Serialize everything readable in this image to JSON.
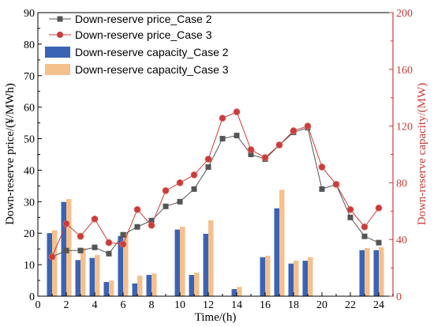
{
  "chart_data": {
    "type": "bar+line",
    "xlabel": "Time/(h)",
    "ylabel_left": "Down-reserve price/(¥/MWh)",
    "ylabel_right": "Down-reserve capacity/(MW)",
    "xlim": [
      0,
      25
    ],
    "x_ticks": [
      "0",
      "2",
      "4",
      "6",
      "8",
      "10",
      "12",
      "14",
      "16",
      "18",
      "20",
      "22",
      "24"
    ],
    "ylim_left": [
      0,
      90
    ],
    "y_ticks_left": [
      "0",
      "10",
      "20",
      "30",
      "40",
      "50",
      "60",
      "70",
      "80",
      "90"
    ],
    "ylim_right": [
      0,
      200
    ],
    "y_ticks_right": [
      "0",
      "40",
      "80",
      "120",
      "160",
      "200"
    ],
    "x": [
      1,
      2,
      3,
      4,
      5,
      6,
      7,
      8,
      9,
      10,
      11,
      12,
      13,
      14,
      15,
      16,
      17,
      18,
      19,
      20,
      21,
      22,
      23,
      24
    ],
    "bar_series": [
      {
        "name": "Down-reserve capacity_Case 2",
        "color": "#3B63B5",
        "values": [
          44.5,
          66.5,
          25.5,
          27,
          10,
          42.5,
          9,
          15,
          0,
          47,
          15,
          44,
          0,
          5,
          0,
          27.5,
          62,
          23,
          25,
          0,
          0,
          0,
          32.5,
          32.5
        ]
      },
      {
        "name": "Down-reserve capacity_Case 3",
        "color": "#F5C08C",
        "values": [
          46.5,
          68.5,
          34,
          29,
          11,
          44.5,
          14.5,
          16,
          0,
          49,
          16.5,
          53.5,
          0,
          6.5,
          0,
          28.5,
          75,
          25,
          27.5,
          0,
          0,
          0,
          34,
          34.5
        ]
      }
    ],
    "line_series": [
      {
        "name": "Down-reserve price_Case 2",
        "color": "#555555",
        "marker": "square",
        "values": [
          12.5,
          14.5,
          14.5,
          15.5,
          13.5,
          19.5,
          22,
          24,
          28.5,
          30,
          34,
          41,
          50,
          51,
          45,
          43.5,
          48,
          52,
          53.5,
          34,
          35.5,
          25,
          19,
          17
        ]
      },
      {
        "name": "Down-reserve price_Case 3",
        "color": "#C83C3C",
        "marker": "circle",
        "values": [
          12.5,
          23,
          19,
          24.5,
          17,
          16.5,
          27.5,
          22.5,
          33.5,
          36,
          38.5,
          43.5,
          56.5,
          58.5,
          46.5,
          44,
          48,
          52.5,
          54,
          41,
          35.5,
          27.5,
          22,
          28
        ]
      }
    ],
    "legend": {
      "placement": "top-left",
      "entries": [
        "Down-reserve price_Case 2",
        "Down-reserve price_Case 3",
        "Down-reserve capacity_Case 2",
        "Down-reserve capacity_Case 3"
      ]
    },
    "grid": false
  }
}
